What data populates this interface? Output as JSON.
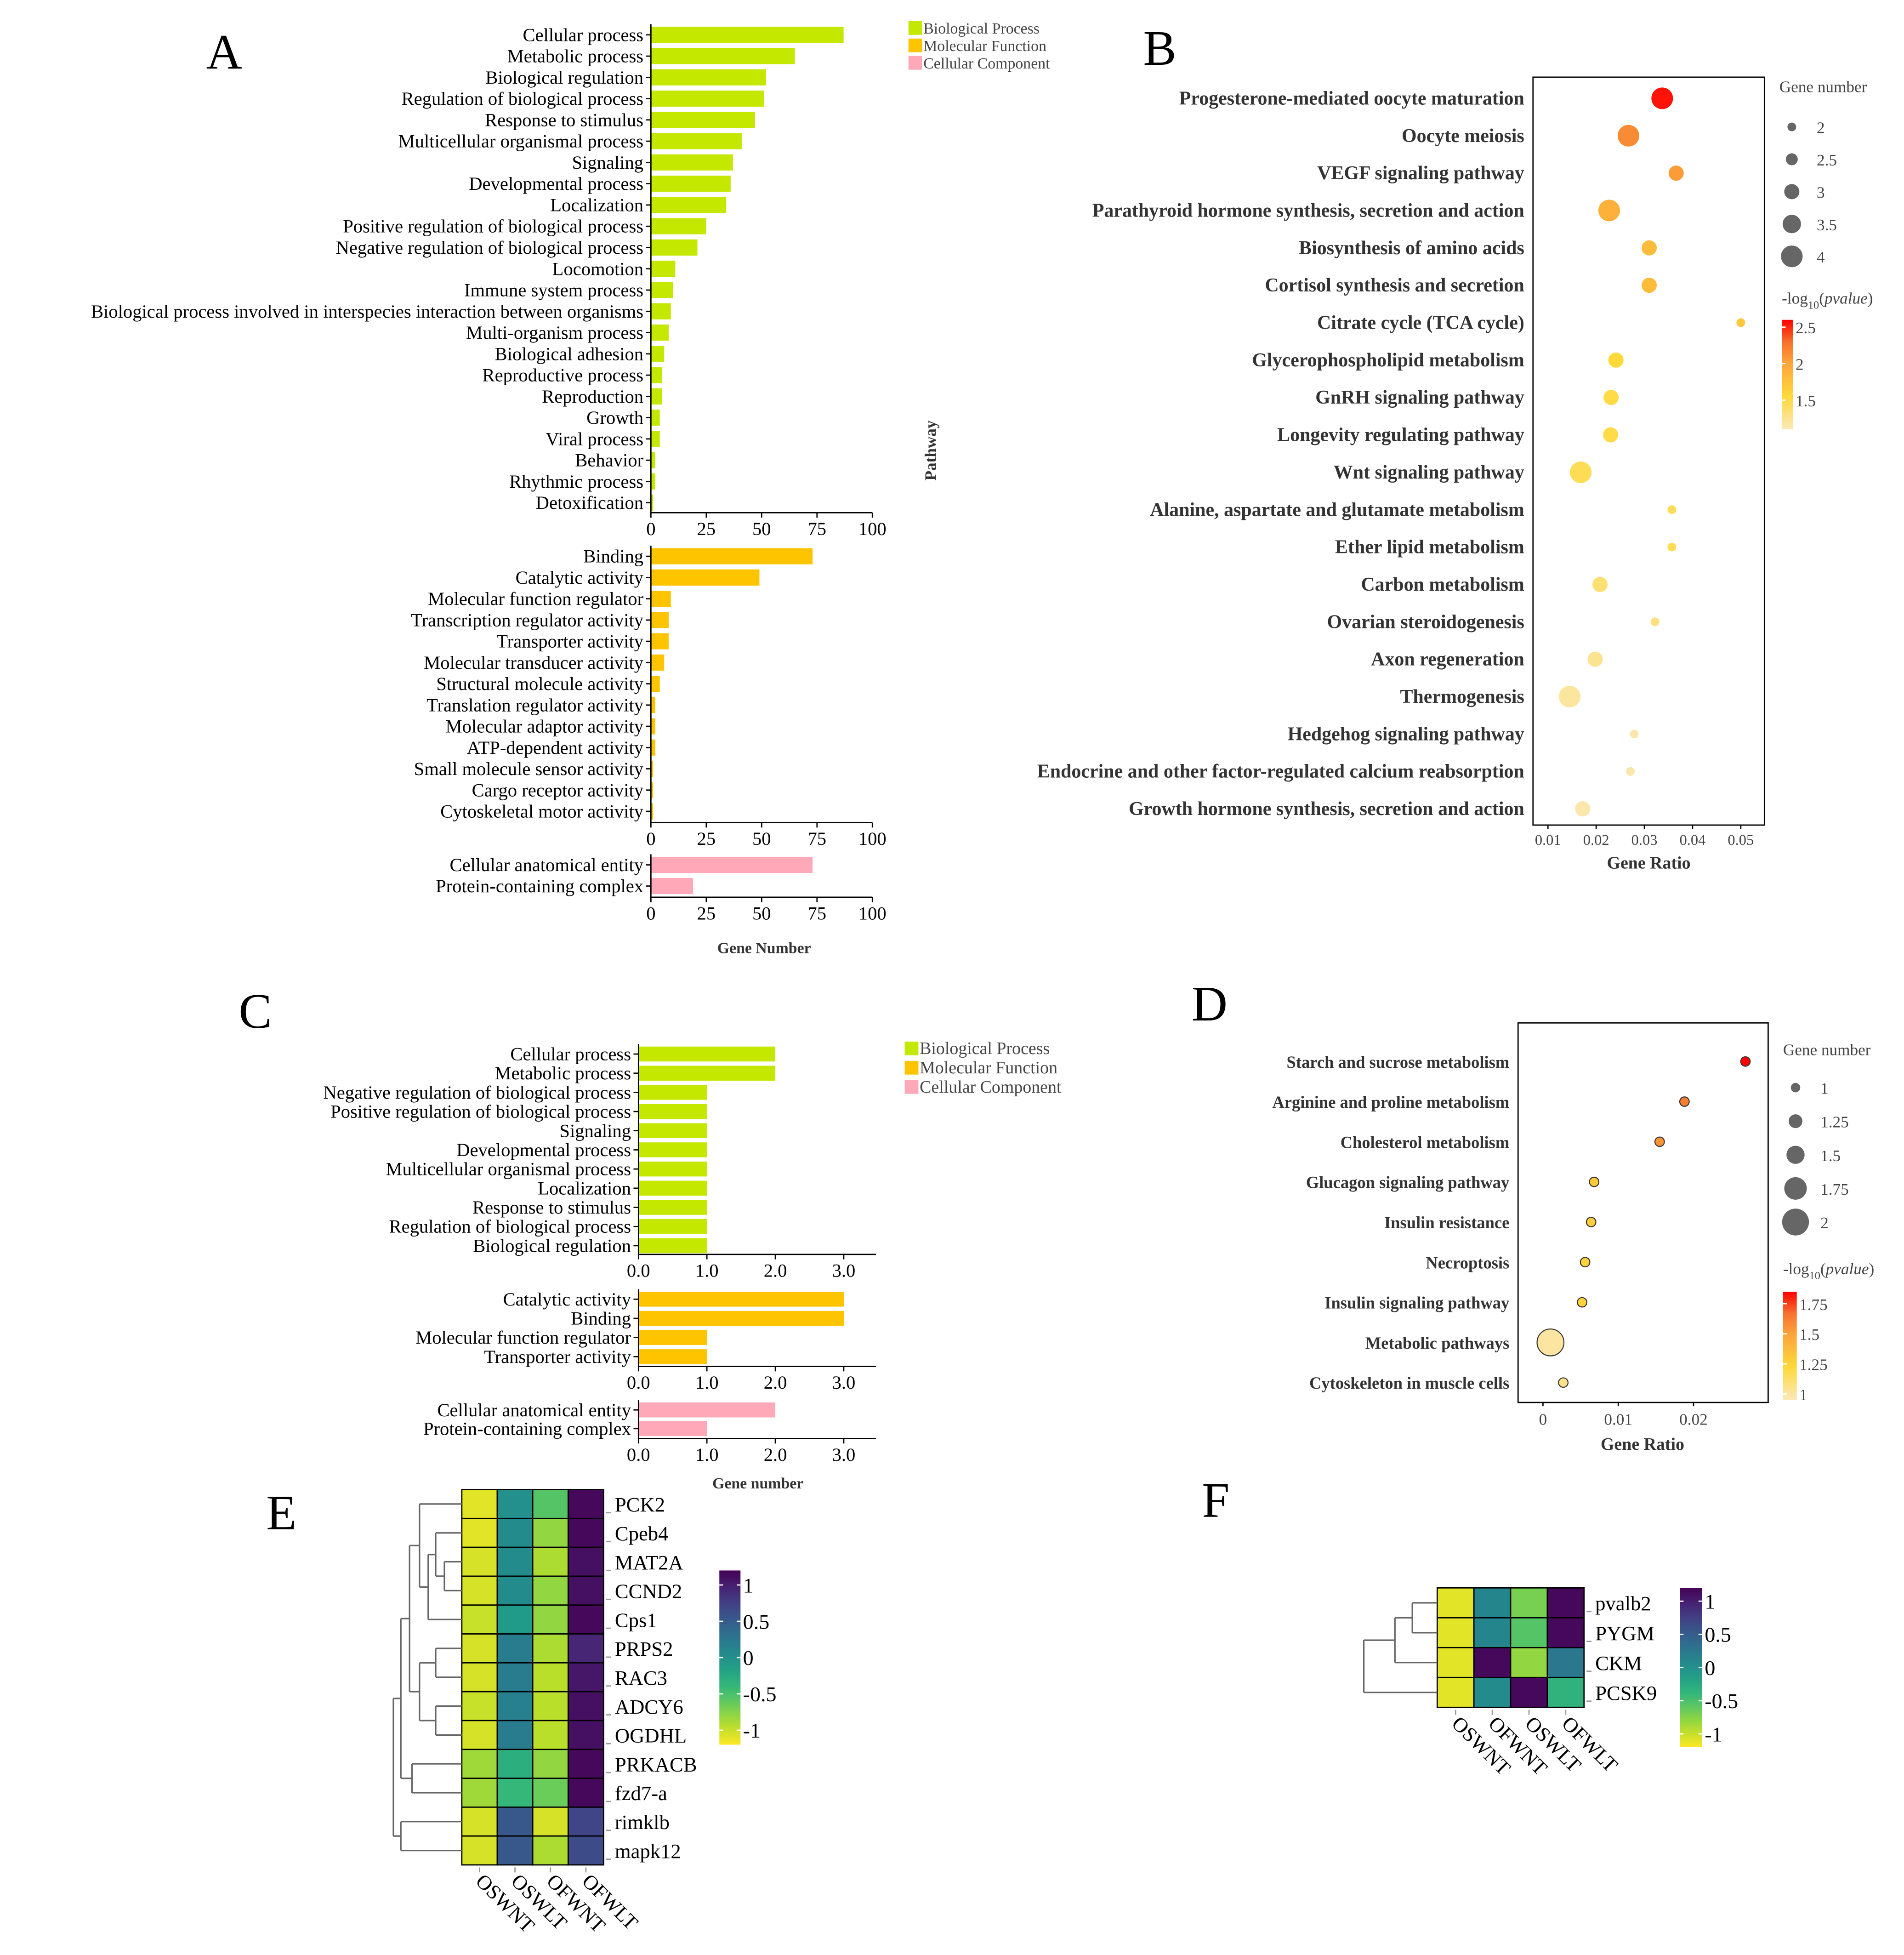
{
  "panel_letters": [
    "A",
    "B",
    "C",
    "D",
    "E",
    "F"
  ],
  "chart_data": [
    {
      "type": "bar",
      "orientation": "horizontal",
      "xlabel": "Gene Number",
      "xlim": [
        0,
        100
      ],
      "xticks": [
        "0",
        "25",
        "50",
        "75",
        "100"
      ],
      "legend": [
        "Biological Process",
        "Molecular Function",
        "Cellular Component"
      ],
      "legend_placement": "top-right",
      "groups": [
        {
          "name": "Biological Process",
          "color": "#C5E800",
          "categories": [
            "Cellular process",
            "Metabolic process",
            "Biological regulation",
            "Regulation of biological process",
            "Response to stimulus",
            "Multicellular organismal process",
            "Signaling",
            "Developmental process",
            "Localization",
            "Positive regulation of biological process",
            "Negative regulation of biological process",
            "Locomotion",
            "Immune system process",
            "Biological process involved in interspecies interaction between organisms",
            "Multi-organism process",
            "Biological adhesion",
            "Reproductive process",
            "Reproduction",
            "Growth",
            "Viral process",
            "Behavior",
            "Rhythmic process",
            "Detoxification"
          ],
          "values": [
            87,
            65,
            52,
            51,
            47,
            41,
            37,
            36,
            34,
            25,
            21,
            11,
            10,
            9,
            8,
            6,
            5,
            5,
            4,
            4,
            2,
            2,
            1
          ]
        },
        {
          "name": "Molecular Function",
          "color": "#FFC400",
          "categories": [
            "Binding",
            "Catalytic activity",
            "Molecular function regulator",
            "Transcription regulator activity",
            "Transporter activity",
            "Molecular transducer activity",
            "Structural molecule activity",
            "Translation regulator activity",
            "Molecular adaptor activity",
            "ATP-dependent activity",
            "Small molecule sensor activity",
            "Cargo receptor activity",
            "Cytoskeletal motor activity"
          ],
          "values": [
            73,
            49,
            9,
            8,
            8,
            6,
            4,
            2,
            2,
            2,
            1,
            1,
            1
          ]
        },
        {
          "name": "Cellular Component",
          "color": "#FFA8B8",
          "categories": [
            "Cellular anatomical entity",
            "Protein-containing complex"
          ],
          "values": [
            73,
            19
          ]
        }
      ]
    },
    {
      "type": "scatter",
      "xlabel": "Gene Ratio",
      "ylabel": "Pathway",
      "xlim": [
        0.007,
        0.055
      ],
      "xticks": [
        "0.01",
        "0.02",
        "0.03",
        "0.04",
        "0.05"
      ],
      "size_legend_title": "Gene number",
      "size_legend": [
        "2",
        "2.5",
        "3",
        "3.5",
        "4"
      ],
      "color_legend_title": {
        "prefix": "-log",
        "sub": "10",
        "italic": "pvalue"
      },
      "color_legend": [
        "2.5",
        "2",
        "1.5"
      ],
      "color_range": [
        1.1,
        2.6
      ],
      "points": [
        {
          "pathway": "Progesterone-mediated oocyte maturation",
          "gene_ratio": 0.0337,
          "gene_number": 4,
          "neg_log10_p": 2.55
        },
        {
          "pathway": "Oocyte meiosis",
          "gene_ratio": 0.0267,
          "gene_number": 4,
          "neg_log10_p": 2.15
        },
        {
          "pathway": "VEGF signaling pathway",
          "gene_ratio": 0.0366,
          "gene_number": 3,
          "neg_log10_p": 2.05
        },
        {
          "pathway": "Parathyroid hormone synthesis, secretion and action",
          "gene_ratio": 0.0227,
          "gene_number": 4,
          "neg_log10_p": 1.9
        },
        {
          "pathway": "Biosynthesis of amino acids",
          "gene_ratio": 0.031,
          "gene_number": 3,
          "neg_log10_p": 1.8
        },
        {
          "pathway": "Cortisol synthesis and secretion",
          "gene_ratio": 0.031,
          "gene_number": 3,
          "neg_log10_p": 1.8
        },
        {
          "pathway": "Citrate cycle (TCA cycle)",
          "gene_ratio": 0.05,
          "gene_number": 2,
          "neg_log10_p": 1.7
        },
        {
          "pathway": "Glycerophospholipid metabolism",
          "gene_ratio": 0.0241,
          "gene_number": 3,
          "neg_log10_p": 1.55
        },
        {
          "pathway": "GnRH signaling pathway",
          "gene_ratio": 0.0231,
          "gene_number": 3,
          "neg_log10_p": 1.5
        },
        {
          "pathway": "Longevity regulating pathway",
          "gene_ratio": 0.023,
          "gene_number": 3,
          "neg_log10_p": 1.5
        },
        {
          "pathway": "Wnt signaling pathway",
          "gene_ratio": 0.0168,
          "gene_number": 4,
          "neg_log10_p": 1.45
        },
        {
          "pathway": "Alanine, aspartate and glutamate metabolism",
          "gene_ratio": 0.0357,
          "gene_number": 2,
          "neg_log10_p": 1.45
        },
        {
          "pathway": "Ether lipid metabolism",
          "gene_ratio": 0.0357,
          "gene_number": 2,
          "neg_log10_p": 1.45
        },
        {
          "pathway": "Carbon metabolism",
          "gene_ratio": 0.0208,
          "gene_number": 3,
          "neg_log10_p": 1.35
        },
        {
          "pathway": "Ovarian steroidogenesis",
          "gene_ratio": 0.0322,
          "gene_number": 2,
          "neg_log10_p": 1.3
        },
        {
          "pathway": "Axon regeneration",
          "gene_ratio": 0.0198,
          "gene_number": 3,
          "neg_log10_p": 1.25
        },
        {
          "pathway": "Thermogenesis",
          "gene_ratio": 0.0145,
          "gene_number": 4,
          "neg_log10_p": 1.2
        },
        {
          "pathway": "Hedgehog signaling pathway",
          "gene_ratio": 0.0279,
          "gene_number": 2,
          "neg_log10_p": 1.15
        },
        {
          "pathway": "Endocrine and other factor-regulated calcium reabsorption",
          "gene_ratio": 0.0271,
          "gene_number": 2,
          "neg_log10_p": 1.15
        },
        {
          "pathway": "Growth hormone synthesis, secretion and action",
          "gene_ratio": 0.0172,
          "gene_number": 3,
          "neg_log10_p": 1.15
        }
      ]
    },
    {
      "type": "bar",
      "orientation": "horizontal",
      "xlabel": "Gene number",
      "xlim": [
        0,
        3.5
      ],
      "xticks": [
        "0.0",
        "1.0",
        "2.0",
        "3.0"
      ],
      "legend": [
        "Biological Process",
        "Molecular Function",
        "Cellular Component"
      ],
      "legend_placement": "top-right",
      "groups": [
        {
          "name": "Biological Process",
          "color": "#C5E800",
          "categories": [
            "Cellular process",
            "Metabolic process",
            "Negative regulation of biological process",
            "Positive regulation of biological process",
            "Signaling",
            "Developmental process",
            "Multicellular organismal process",
            "Localization",
            "Response to stimulus",
            "Regulation of biological process",
            "Biological regulation"
          ],
          "values": [
            2,
            2,
            1,
            1,
            1,
            1,
            1,
            1,
            1,
            1,
            1
          ]
        },
        {
          "name": "Molecular Function",
          "color": "#FFC400",
          "categories": [
            "Catalytic activity",
            "Binding",
            "Molecular function regulator",
            "Transporter activity"
          ],
          "values": [
            3,
            3,
            1,
            1
          ]
        },
        {
          "name": "Cellular Component",
          "color": "#FFA8B8",
          "categories": [
            "Cellular anatomical entity",
            "Protein-containing complex"
          ],
          "values": [
            2,
            1
          ]
        }
      ]
    },
    {
      "type": "scatter",
      "xlabel": "Gene Ratio",
      "xlim": [
        -0.0033,
        0.03
      ],
      "xticks": [
        "0",
        "0.01",
        "0.02"
      ],
      "size_legend_title": "Gene number",
      "size_legend": [
        "1",
        "1.25",
        "1.5",
        "1.75",
        "2"
      ],
      "color_legend_title": {
        "prefix": "-log",
        "sub": "10",
        "italic": "pvalue"
      },
      "color_legend": [
        "1.75",
        "1.5",
        "1.25",
        "1"
      ],
      "color_range": [
        0.95,
        1.85
      ],
      "points": [
        {
          "pathway": "Starch and sucrose metabolism",
          "gene_ratio": 0.0269,
          "gene_number": 1,
          "neg_log10_p": 1.85
        },
        {
          "pathway": "Arginine and proline metabolism",
          "gene_ratio": 0.0188,
          "gene_number": 1,
          "neg_log10_p": 1.62
        },
        {
          "pathway": "Cholesterol metabolism",
          "gene_ratio": 0.0155,
          "gene_number": 1,
          "neg_log10_p": 1.55
        },
        {
          "pathway": "Glucagon signaling pathway",
          "gene_ratio": 0.0068,
          "gene_number": 1,
          "neg_log10_p": 1.3
        },
        {
          "pathway": "Insulin resistance",
          "gene_ratio": 0.0064,
          "gene_number": 1,
          "neg_log10_p": 1.27
        },
        {
          "pathway": "Necroptosis",
          "gene_ratio": 0.0056,
          "gene_number": 1,
          "neg_log10_p": 1.25
        },
        {
          "pathway": "Insulin signaling pathway",
          "gene_ratio": 0.0052,
          "gene_number": 1,
          "neg_log10_p": 1.25
        },
        {
          "pathway": "Metabolic pathways",
          "gene_ratio": 0.001,
          "gene_number": 2,
          "neg_log10_p": 1.0
        },
        {
          "pathway": "Cytoskeleton in muscle cells",
          "gene_ratio": 0.0027,
          "gene_number": 1,
          "neg_log10_p": 1.05
        }
      ]
    },
    {
      "type": "heatmap",
      "columns": [
        "OSWNT",
        "OSWLT",
        "OFWNT",
        "OFWLT"
      ],
      "rows": [
        "PCK2",
        "Cpeb4",
        "MAT2A",
        "CCND2",
        "Cps1",
        "PRPS2",
        "RAC3",
        "ADCY6",
        "OGDHL",
        "PRKACB",
        "fzd7-a",
        "rimklb",
        "mapk12"
      ],
      "values": [
        [
          -1.1,
          0.0,
          -0.55,
          1.15
        ],
        [
          -1.1,
          0.05,
          -0.8,
          1.15
        ],
        [
          -1.05,
          0.05,
          -0.9,
          1.1
        ],
        [
          -1.05,
          0.05,
          -0.8,
          1.1
        ],
        [
          -1.0,
          -0.1,
          -0.8,
          1.15
        ],
        [
          -1.05,
          0.2,
          -0.9,
          0.95
        ],
        [
          -1.05,
          0.2,
          -0.95,
          1.05
        ],
        [
          -1.0,
          0.15,
          -0.95,
          1.1
        ],
        [
          -1.05,
          0.2,
          -0.95,
          1.1
        ],
        [
          -0.85,
          -0.3,
          -0.8,
          1.15
        ],
        [
          -0.85,
          -0.4,
          -0.65,
          1.15
        ],
        [
          -1.05,
          0.55,
          -1.05,
          0.7
        ],
        [
          -1.05,
          0.55,
          -0.9,
          0.65
        ]
      ],
      "colorbar_ticks": [
        "1",
        "0.5",
        "0",
        "-0.5",
        "-1"
      ],
      "colorbar_values": [
        1,
        0.5,
        0,
        -0.5,
        -1
      ]
    },
    {
      "type": "heatmap",
      "columns": [
        "OSWNT",
        "OFWNT",
        "OSWLT",
        "OFWLT"
      ],
      "rows": [
        "pvalb2",
        "PYGM",
        "CKM",
        "PCSK9"
      ],
      "values": [
        [
          -1.1,
          0.1,
          -0.7,
          1.15
        ],
        [
          -1.1,
          0.1,
          -0.55,
          1.15
        ],
        [
          -1.1,
          1.15,
          -0.8,
          0.25
        ],
        [
          -1.1,
          0.05,
          1.15,
          -0.35
        ]
      ],
      "colorbar_ticks": [
        "1",
        "0.5",
        "0",
        "-0.5",
        "-1"
      ],
      "colorbar_values": [
        1,
        0.5,
        0,
        -0.5,
        -1
      ]
    }
  ]
}
